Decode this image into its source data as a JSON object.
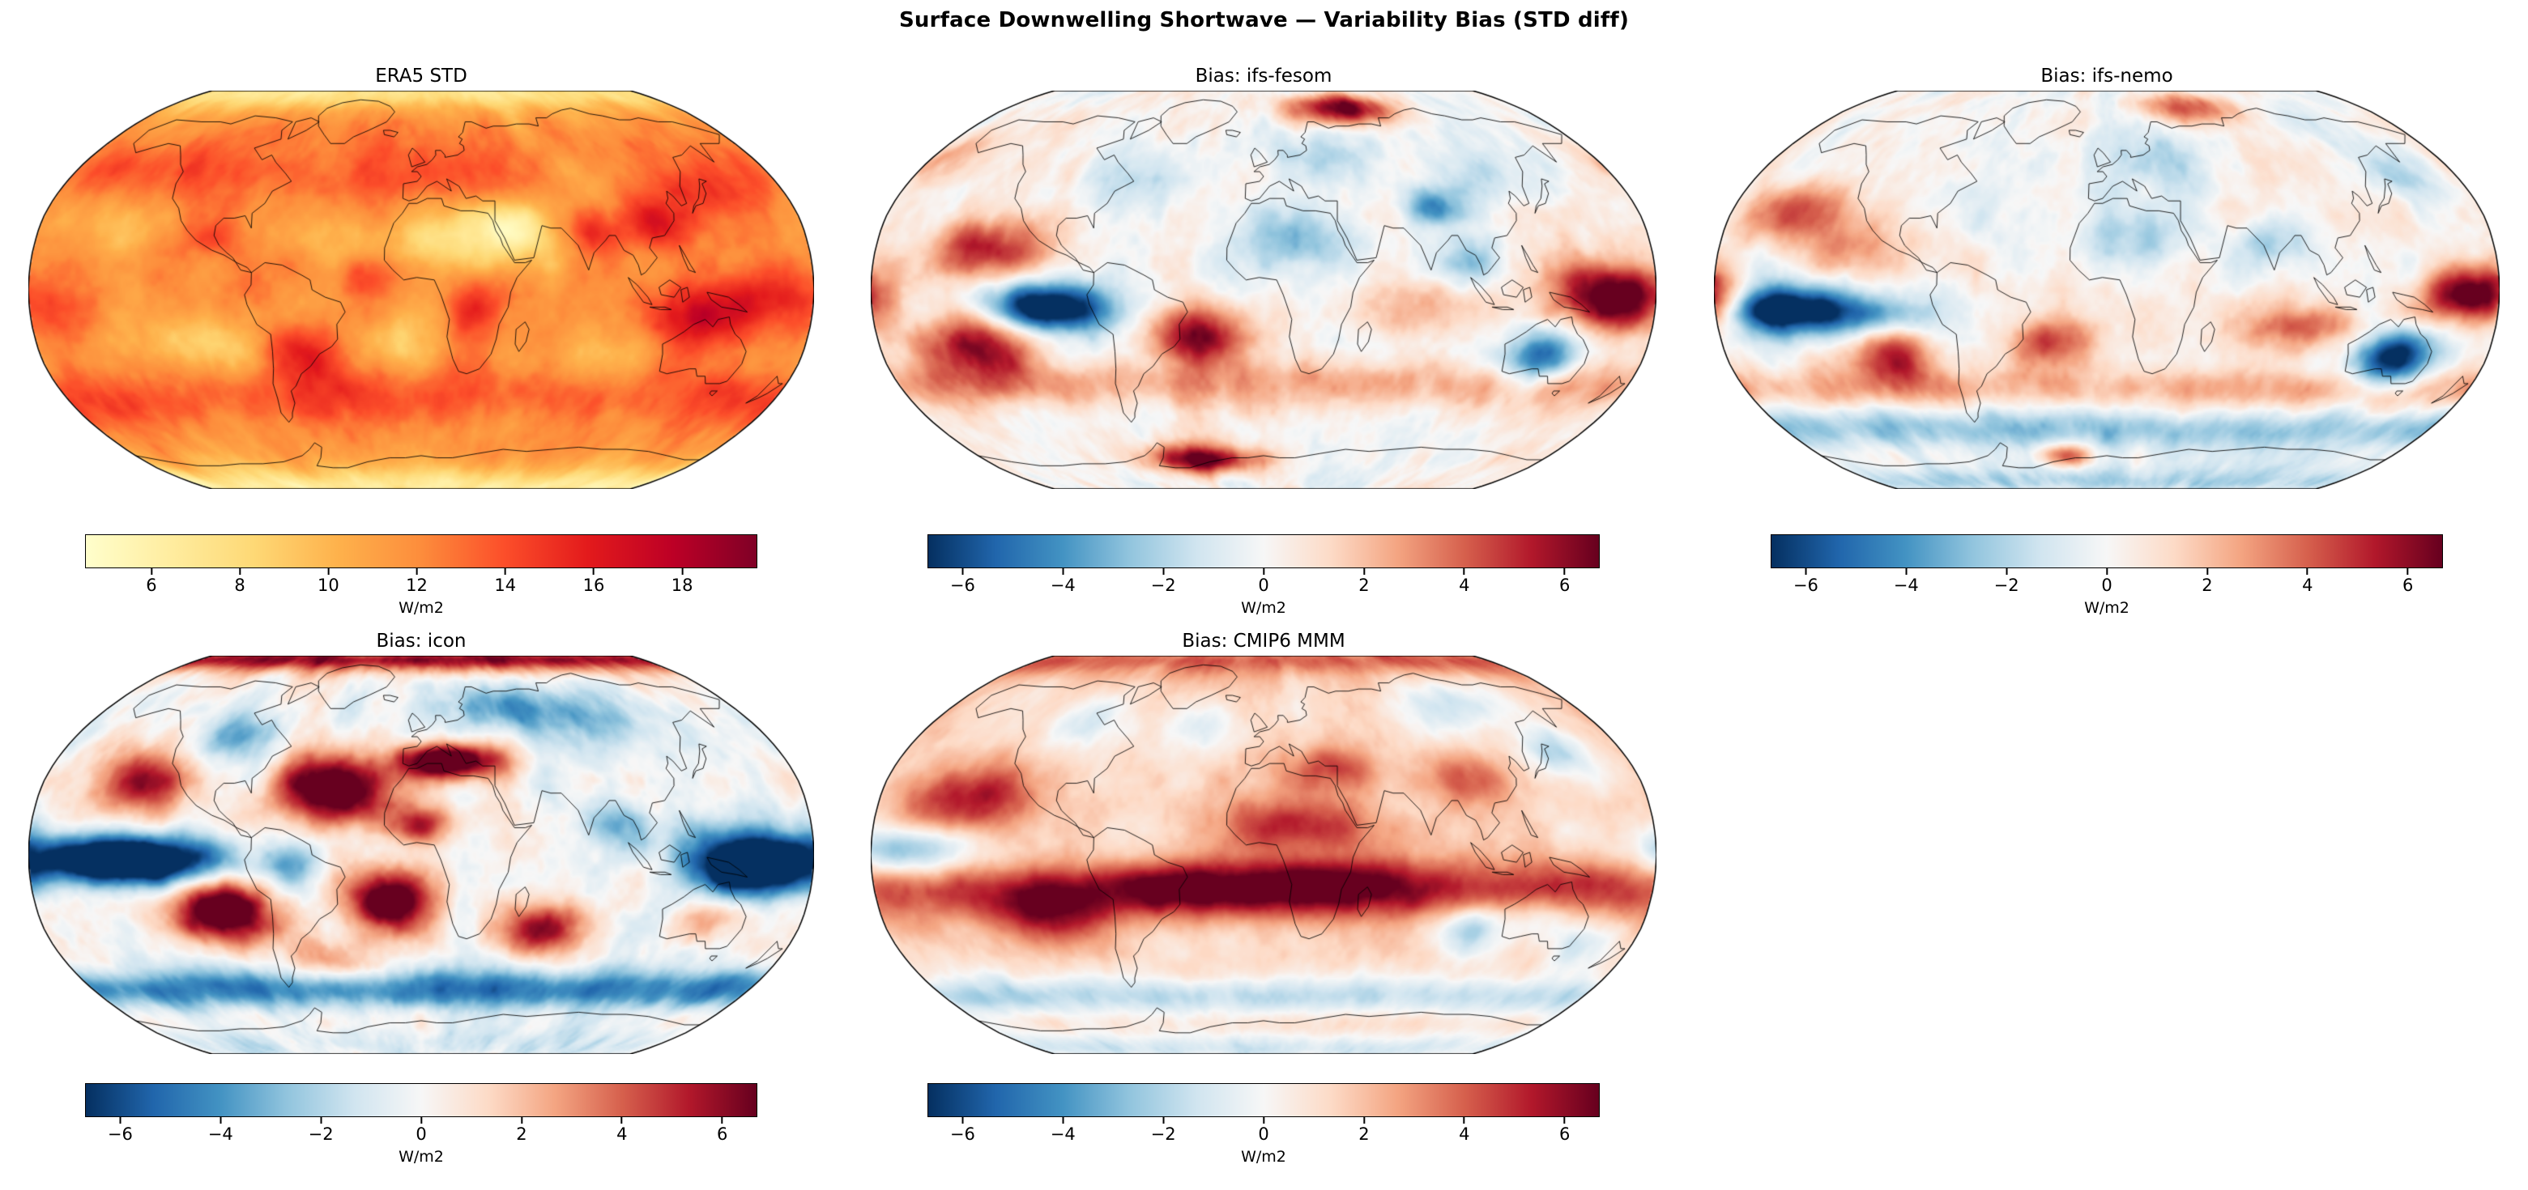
{
  "figure": {
    "suptitle": "Surface Downwelling Shortwave — Variability Bias (STD diff)",
    "background": "#ffffff"
  },
  "chart_data": [
    {
      "type": "heatmap",
      "panel": "top-left",
      "title": "ERA5 STD",
      "projection": "Robinson",
      "units": "W/m2",
      "colormap": "YlOrRd",
      "vmin": 4.5,
      "vmax": 19.7,
      "colorbar": {
        "label": "W/m2",
        "tick_values": [
          6,
          8,
          10,
          12,
          14,
          16,
          18
        ],
        "tick_labels": [
          "6",
          "8",
          "10",
          "12",
          "14",
          "16",
          "18"
        ]
      },
      "visual_summary": "Reference ERA5 interannual standard deviation of surface downwelling shortwave. Dark-red maxima (17-19 W/m2) over East Asia, India, the tropical west Pacific / maritime continent and subtropical South America; pale-yellow minima (5-7 W/m2) over the Sahara, Arabia, the Arctic, the Antarctic interior and eastern subtropical oceans; moderate orange-red storm-track bands in both mid-latitudes."
    },
    {
      "type": "heatmap",
      "panel": "top-middle",
      "title": "Bias: ifs-fesom",
      "projection": "Robinson",
      "units": "W/m2",
      "colormap": "RdBu_r",
      "vmin": -6.7,
      "vmax": 6.7,
      "colorbar": {
        "label": "W/m2",
        "tick_values": [
          -6,
          -4,
          -2,
          0,
          2,
          4,
          6
        ],
        "tick_labels": [
          "−6",
          "−4",
          "−2",
          "0",
          "2",
          "4",
          "6"
        ]
      },
      "visual_summary": "STD bias of ifs-fesom vs ERA5. Strong negative (dark blue) bias in the eastern equatorial Pacific cold tongue and over Australia; strong positive (dark red) bias over the west Pacific warm pool, south Atlantic, Barents/Kara Arctic sector, the Antarctic coast and southern mid-latitude ocean bands; weak negative bias over the Sahara and the Himalayas."
    },
    {
      "type": "heatmap",
      "panel": "top-right",
      "title": "Bias: ifs-nemo",
      "projection": "Robinson",
      "units": "W/m2",
      "colormap": "RdBu_r",
      "vmin": -6.7,
      "vmax": 6.7,
      "colorbar": {
        "label": "W/m2",
        "tick_values": [
          -6,
          -4,
          -2,
          0,
          2,
          4,
          6
        ],
        "tick_labels": [
          "−6",
          "−4",
          "−2",
          "0",
          "2",
          "4",
          "6"
        ]
      },
      "visual_summary": "STD bias of ifs-nemo vs ERA5. Compact dark-blue bias in the central/eastern equatorial Pacific and a pronounced dark-blue blob over Australia; dark-red bias at the equatorial west Pacific edge, southern Indian and Atlantic subtropical bands and the southeast Pacific; light-blue bias over the Sahara, India and Europe; reddish arc along parts of the Antarctic coast."
    },
    {
      "type": "heatmap",
      "panel": "bottom-left",
      "title": "Bias: icon",
      "projection": "Robinson",
      "units": "W/m2",
      "colormap": "RdBu_r",
      "vmin": -6.7,
      "vmax": 6.7,
      "colorbar": {
        "label": "W/m2",
        "tick_values": [
          -6,
          -4,
          -2,
          0,
          2,
          4,
          6
        ],
        "tick_labels": [
          "−6",
          "−4",
          "−2",
          "0",
          "2",
          "4",
          "6"
        ]
      },
      "visual_summary": "STD bias of icon vs ERA5, the most extreme panel. Deep-blue band across the whole equatorial Pacific and the maritime continent, blue Southern Ocean band; saturated dark-red blobs over the North Atlantic, the Mediterranean/southern Europe, the northeast and southeast Pacific and the south Atlantic; red Arctic rim, blue Scandinavia/Siberia and interior North America."
    },
    {
      "type": "heatmap",
      "panel": "bottom-middle",
      "title": "Bias: CMIP6 MMM",
      "projection": "Robinson",
      "units": "W/m2",
      "colormap": "RdBu_r",
      "vmin": -6.7,
      "vmax": 6.7,
      "colorbar": {
        "label": "W/m2",
        "tick_values": [
          -6,
          -4,
          -2,
          0,
          2,
          4,
          6
        ],
        "tick_labels": [
          "−6",
          "−4",
          "−2",
          "0",
          "2",
          "4",
          "6"
        ]
      },
      "visual_summary": "STD bias of the CMIP6 multi-model mean vs ERA5: predominantly positive (red) almost everywhere, with a very dark red band along the southern tropics from the Atlantic through Africa and the Indian Ocean to the maritime continent; light-blue patches in the central equatorial Pacific, northwest Pacific, west of Australia, Siberia, the Southern Ocean and the Antarctic interior."
    }
  ],
  "colormaps": {
    "YlOrRd": [
      "#ffffcc",
      "#ffeda0",
      "#fed976",
      "#feb24c",
      "#fd8d3c",
      "#fc4e2a",
      "#e31a1c",
      "#bd0026",
      "#800026"
    ],
    "RdBu_r": [
      "#053061",
      "#2166ac",
      "#4393c3",
      "#92c5de",
      "#d1e5f0",
      "#f7f7f7",
      "#fddbc7",
      "#f4a582",
      "#d6604d",
      "#b2182b",
      "#67001f"
    ]
  }
}
